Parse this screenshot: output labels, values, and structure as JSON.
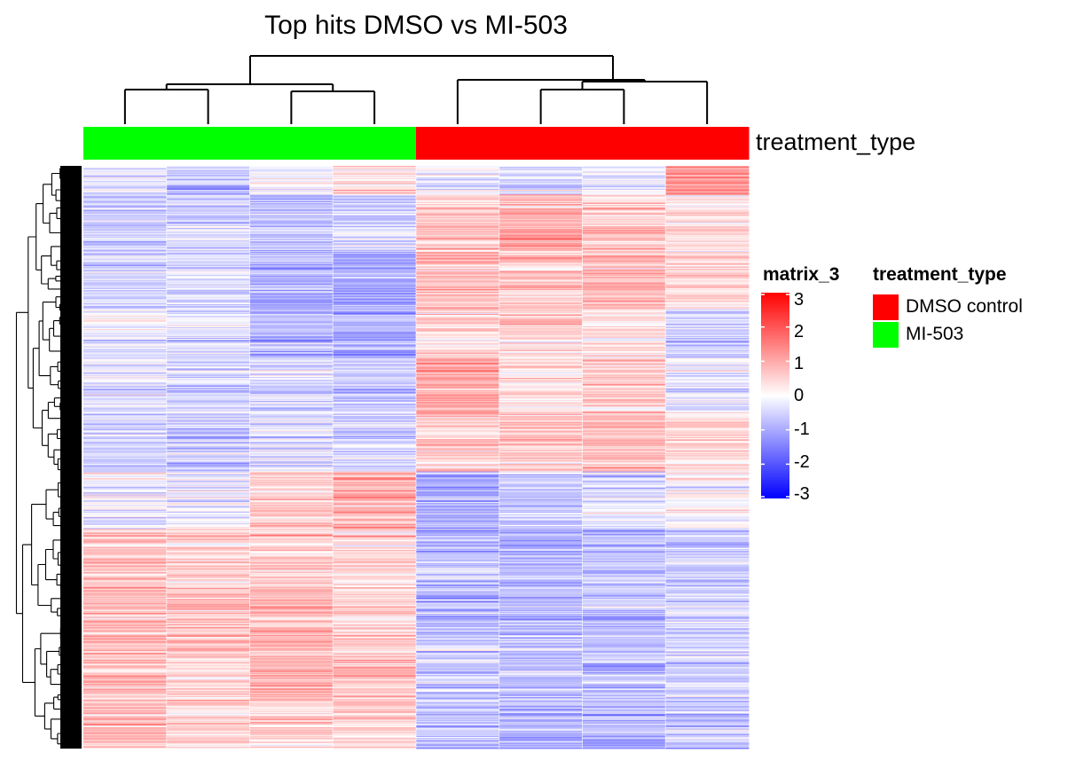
{
  "chart_data": {
    "type": "heatmap",
    "title": "Top hits DMSO vs MI-503",
    "annotation": {
      "name": "treatment_type",
      "per_column": [
        "MI-503",
        "MI-503",
        "MI-503",
        "MI-503",
        "DMSO control",
        "DMSO control",
        "DMSO control",
        "DMSO control"
      ],
      "levels": [
        {
          "label": "DMSO control",
          "color": "#ff0000"
        },
        {
          "label": "MI-503",
          "color": "#00ff00"
        }
      ]
    },
    "colorbar": {
      "title": "matrix_3",
      "ticks": [
        3,
        2,
        1,
        0,
        -1,
        -2,
        -3
      ],
      "range": [
        -3,
        3
      ],
      "colors": {
        "low": "#0000ff",
        "mid": "#ffffff",
        "high": "#ff0000"
      }
    },
    "columns": 8,
    "column_dendrogram": "(((1,2),(3,4)),(5,((6,7),8)))",
    "row_dendrogram": true,
    "row_blocks": [
      {
        "rows": 30,
        "means": [
          -0.4,
          -0.8,
          -0.2,
          0.3,
          -0.2,
          -0.5,
          -0.3,
          1.2
        ]
      },
      {
        "rows": 60,
        "means": [
          -0.6,
          -0.4,
          -0.7,
          -0.5,
          0.7,
          1.0,
          0.6,
          0.3
        ]
      },
      {
        "rows": 60,
        "means": [
          -0.6,
          -0.4,
          -0.9,
          -1.1,
          0.8,
          0.6,
          0.8,
          0.4
        ]
      },
      {
        "rows": 50,
        "means": [
          -0.2,
          -0.3,
          -0.7,
          -0.9,
          0.5,
          0.6,
          0.4,
          -0.4
        ]
      },
      {
        "rows": 60,
        "means": [
          -0.3,
          -0.4,
          -0.4,
          -0.6,
          1.0,
          0.4,
          0.6,
          -0.2
        ]
      },
      {
        "rows": 60,
        "means": [
          -0.5,
          -0.6,
          -0.3,
          -0.5,
          0.6,
          0.7,
          0.8,
          0.5
        ]
      },
      {
        "rows": 60,
        "means": [
          -0.1,
          -0.2,
          0.6,
          0.9,
          -0.9,
          -0.6,
          -0.4,
          0.1
        ]
      },
      {
        "rows": 60,
        "means": [
          0.8,
          0.6,
          0.6,
          0.5,
          -0.7,
          -0.8,
          -0.7,
          -0.6
        ]
      },
      {
        "rows": 60,
        "means": [
          0.8,
          0.7,
          0.9,
          0.5,
          -0.8,
          -0.7,
          -0.7,
          -0.5
        ]
      },
      {
        "rows": 60,
        "means": [
          0.7,
          0.5,
          0.8,
          0.7,
          -0.6,
          -0.6,
          -0.8,
          -0.5
        ]
      },
      {
        "rows": 50,
        "means": [
          0.8,
          0.5,
          0.5,
          0.6,
          -0.7,
          -0.9,
          -0.8,
          -0.6
        ]
      }
    ]
  }
}
